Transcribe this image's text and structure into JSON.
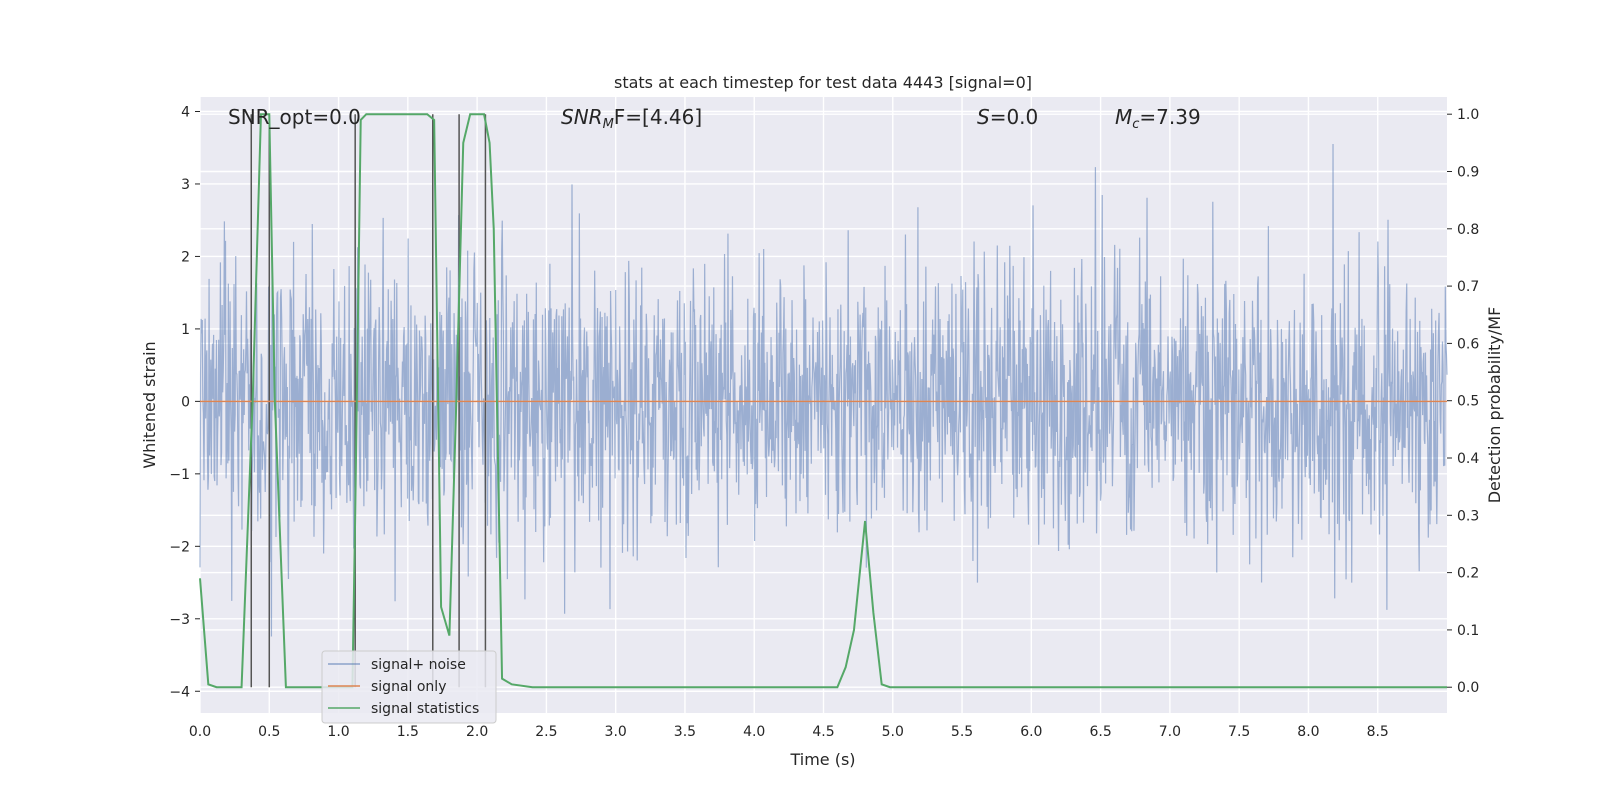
{
  "chart_data": {
    "type": "line",
    "title": "stats at each timestep for test data 4443 [signal=0]",
    "xlabel": "Time (s)",
    "ylabel_left": "Whitened strain",
    "ylabel_right": "Detection probability/MF",
    "xlim": [
      0.0,
      9.0
    ],
    "ylim_left": [
      -4.3,
      4.2
    ],
    "ylim_right": [
      -0.045,
      1.03
    ],
    "x_ticks": [
      "0.0",
      "0.5",
      "1.0",
      "1.5",
      "2.0",
      "2.5",
      "3.0",
      "3.5",
      "4.0",
      "4.5",
      "5.0",
      "5.5",
      "6.0",
      "6.5",
      "7.0",
      "7.5",
      "8.0",
      "8.5"
    ],
    "y_ticks_left": [
      "4",
      "3",
      "2",
      "1",
      "0",
      "−1",
      "−2",
      "−3",
      "−4"
    ],
    "y_ticks_right": [
      "1.0",
      "0.9",
      "0.8",
      "0.7",
      "0.6",
      "0.5",
      "0.4",
      "0.3",
      "0.2",
      "0.1",
      "0.0"
    ],
    "grid": true,
    "background": "#eaeaf2",
    "annotations": {
      "snr_opt": "SNR_opt=0.0",
      "snr_mf_sym": "SNR",
      "snr_mf_sub": "M",
      "snr_mf_rest": "F=[4.46]",
      "s_sym": "S",
      "s_rest": "=0.0",
      "mc_sym": "M",
      "mc_sub": "c",
      "mc_rest": "=7.39"
    },
    "series": [
      {
        "name": "signal+ noise",
        "color": "#4c72b0",
        "axis": "left",
        "style": "noise",
        "approx_range": [
          -4.0,
          4.0
        ],
        "typical_envelope": [
          -1.6,
          1.5
        ]
      },
      {
        "name": "signal only",
        "color": "#dd8452",
        "axis": "left",
        "x": [
          0.0,
          9.0
        ],
        "y": [
          0.0,
          0.0
        ]
      },
      {
        "name": "signal statistics",
        "color": "#55a868",
        "axis": "right",
        "x": [
          0.0,
          0.06,
          0.12,
          0.3,
          0.38,
          0.44,
          0.5,
          0.54,
          0.62,
          0.75,
          1.0,
          1.1,
          1.12,
          1.16,
          1.2,
          1.3,
          1.5,
          1.64,
          1.69,
          1.74,
          1.8,
          1.85,
          1.9,
          1.95,
          2.0,
          2.05,
          2.09,
          2.12,
          2.18,
          2.25,
          2.4,
          3.0,
          4.0,
          4.6,
          4.66,
          4.72,
          4.8,
          4.86,
          4.92,
          4.98,
          5.5,
          6.5,
          7.5,
          8.5,
          9.0
        ],
        "y": [
          0.19,
          0.005,
          0.0,
          0.0,
          0.5,
          1.0,
          1.0,
          0.5,
          0.0,
          0.0,
          0.0,
          0.0,
          0.3,
          0.99,
          1.0,
          1.0,
          1.0,
          1.0,
          0.99,
          0.14,
          0.09,
          0.5,
          0.95,
          1.0,
          1.0,
          1.0,
          0.95,
          0.8,
          0.015,
          0.005,
          0.0,
          0.0,
          0.0,
          0.0,
          0.035,
          0.1,
          0.29,
          0.13,
          0.005,
          0.0,
          0.0,
          0.0,
          0.0,
          0.0,
          0.0
        ]
      }
    ],
    "vlines": [
      0.37,
      0.5,
      1.12,
      1.68,
      1.87,
      2.06
    ],
    "legend": {
      "location": "lower-left"
    }
  }
}
